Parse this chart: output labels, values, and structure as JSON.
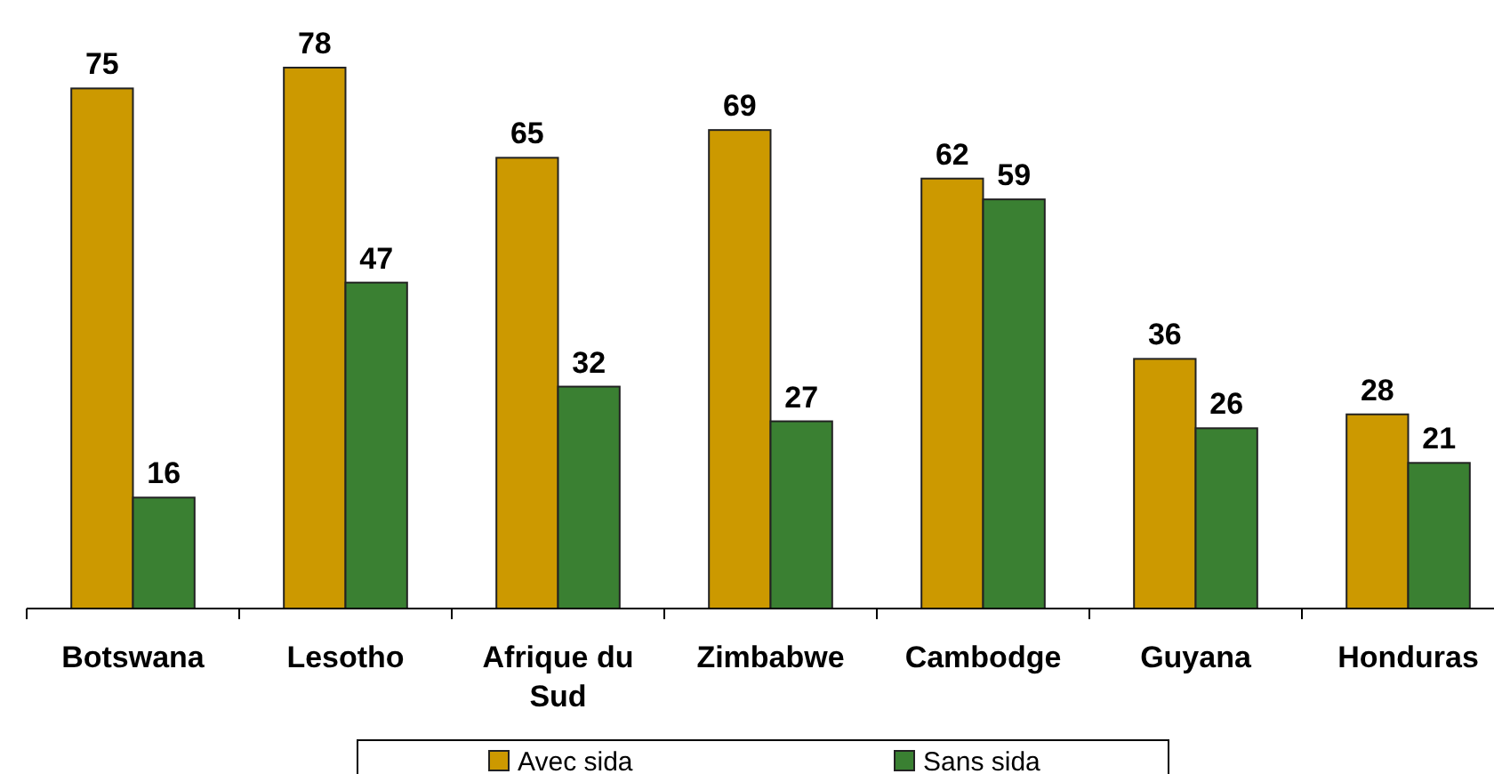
{
  "chart_data": {
    "type": "bar",
    "categories": [
      "Botswana",
      "Lesotho",
      "Afrique du Sud",
      "Zimbabwe",
      "Cambodge",
      "Guyana",
      "Honduras"
    ],
    "series": [
      {
        "name": "Avec sida",
        "color": "#cc9900",
        "values": [
          75,
          78,
          65,
          69,
          62,
          36,
          28
        ]
      },
      {
        "name": "Sans sida",
        "color": "#3a8032",
        "values": [
          16,
          47,
          32,
          27,
          59,
          26,
          21
        ]
      }
    ],
    "data_labels": true,
    "legend": "bottom"
  }
}
